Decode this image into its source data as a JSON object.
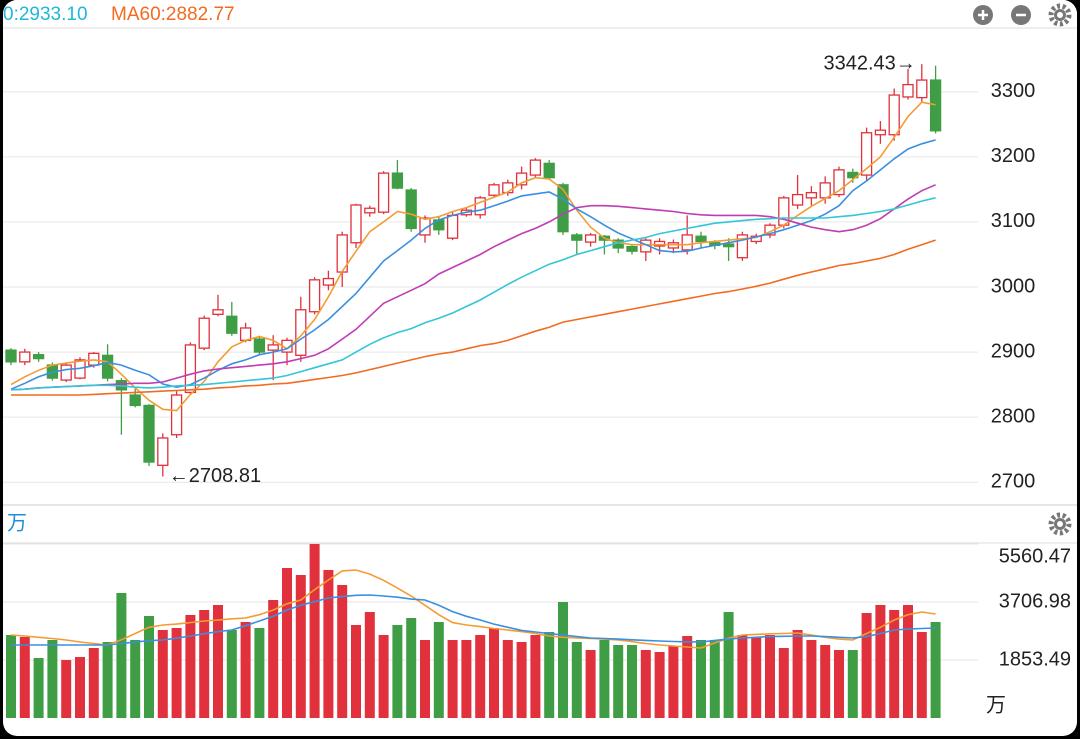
{
  "header": [
    {
      "text": "0:2933.10",
      "color": "#1fb8d8"
    },
    {
      "text": "MA60:2882.77",
      "color": "#f26b21"
    }
  ],
  "chart_data": [
    {
      "type": "candlestick",
      "up_color": "#e0313c",
      "down_color": "#3f9e45",
      "open": [
        2903,
        2885,
        2896,
        2880,
        2857,
        2860,
        2880,
        2895,
        2856,
        2834,
        2818,
        2726,
        2773,
        2838,
        2906,
        2958,
        2955,
        2918,
        2920,
        2903,
        2900,
        2895,
        2962,
        3003,
        3023,
        3068,
        3114,
        3115,
        3175,
        3149,
        3080,
        3103,
        3075,
        3111,
        3111,
        3141,
        3145,
        3157,
        3172,
        3190,
        3157,
        3080,
        3069,
        3078,
        3072,
        3062,
        3054,
        3063,
        3060,
        3057,
        3078,
        3068,
        3066,
        3045,
        3070,
        3080,
        3095,
        3126,
        3137,
        3137,
        3142,
        3176,
        3172,
        3234,
        3234,
        3292,
        3291,
        3318
      ],
      "high": [
        2906,
        2905,
        2900,
        2884,
        2884,
        2892,
        2900,
        2912,
        2860,
        2845,
        2820,
        2775,
        2840,
        2915,
        2956,
        2988,
        2977,
        2945,
        2925,
        2926,
        2922,
        2985,
        3015,
        3025,
        3085,
        3128,
        3125,
        3178,
        3195,
        3152,
        3110,
        3108,
        3115,
        3122,
        3140,
        3160,
        3165,
        3185,
        3198,
        3195,
        3160,
        3083,
        3083,
        3080,
        3075,
        3066,
        3075,
        3075,
        3073,
        3110,
        3085,
        3072,
        3075,
        3085,
        3082,
        3098,
        3140,
        3172,
        3155,
        3170,
        3185,
        3182,
        3245,
        3255,
        3305,
        3335,
        3342.43,
        3340
      ],
      "low": [
        2880,
        2880,
        2885,
        2856,
        2854,
        2858,
        2876,
        2855,
        2773,
        2815,
        2725,
        2708.81,
        2768,
        2835,
        2903,
        2955,
        2925,
        2915,
        2895,
        2857,
        2880,
        2885,
        2958,
        2995,
        3000,
        3060,
        3108,
        3112,
        3150,
        3085,
        3068,
        3080,
        3072,
        3108,
        3105,
        3138,
        3140,
        3150,
        3168,
        3165,
        3080,
        3050,
        3062,
        3050,
        3052,
        3050,
        3040,
        3050,
        3052,
        3050,
        3060,
        3058,
        3040,
        3040,
        3066,
        3075,
        3090,
        3120,
        3125,
        3128,
        3138,
        3160,
        3162,
        3220,
        3225,
        3288,
        3285,
        3236
      ],
      "close": [
        2885,
        2900,
        2890,
        2860,
        2880,
        2888,
        2898,
        2860,
        2842,
        2818,
        2731,
        2768,
        2834,
        2911,
        2952,
        2965,
        2929,
        2937,
        2900,
        2911,
        2918,
        2965,
        3011,
        3013,
        3080,
        3126,
        3121,
        3175,
        3152,
        3090,
        3106,
        3088,
        3110,
        3118,
        3137,
        3157,
        3160,
        3175,
        3195,
        3168,
        3085,
        3072,
        3080,
        3072,
        3060,
        3055,
        3072,
        3070,
        3068,
        3080,
        3070,
        3064,
        3062,
        3080,
        3078,
        3095,
        3137,
        3142,
        3145,
        3160,
        3180,
        3168,
        3237,
        3241,
        3295,
        3311,
        3318,
        3240
      ],
      "lines": [
        {
          "color": "#f39c33",
          "values": [
            2850,
            2862,
            2872,
            2880,
            2883,
            2886,
            2888,
            2885,
            2866,
            2845,
            2826,
            2812,
            2810,
            2835,
            2855,
            2885,
            2908,
            2918,
            2924,
            2918,
            2905,
            2925,
            2950,
            2985,
            3024,
            3055,
            3085,
            3100,
            3116,
            3112,
            3104,
            3108,
            3116,
            3122,
            3130,
            3138,
            3146,
            3160,
            3168,
            3166,
            3150,
            3118,
            3092,
            3075,
            3068,
            3065,
            3065,
            3065,
            3065,
            3065,
            3068,
            3070,
            3072,
            3074,
            3076,
            3085,
            3095,
            3110,
            3124,
            3136,
            3148,
            3165,
            3182,
            3200,
            3230,
            3262,
            3284,
            3280
          ]
        },
        {
          "color": "#3b8fe0",
          "values": [
            2843,
            2852,
            2862,
            2869,
            2873,
            2875,
            2879,
            2884,
            2880,
            2872,
            2865,
            2851,
            2846,
            2850,
            2860,
            2872,
            2882,
            2888,
            2896,
            2900,
            2905,
            2920,
            2934,
            2950,
            2970,
            2990,
            3015,
            3040,
            3056,
            3072,
            3090,
            3103,
            3110,
            3115,
            3118,
            3125,
            3132,
            3140,
            3143,
            3146,
            3135,
            3120,
            3108,
            3095,
            3083,
            3074,
            3065,
            3056,
            3054,
            3055,
            3060,
            3064,
            3068,
            3072,
            3077,
            3082,
            3088,
            3095,
            3102,
            3112,
            3125,
            3148,
            3163,
            3180,
            3197,
            3212,
            3220,
            3226
          ]
        },
        {
          "color": "#c03cb4",
          "values": [
            2842,
            2843,
            2845,
            2846,
            2847,
            2848,
            2849,
            2850,
            2851,
            2852,
            2852,
            2854,
            2860,
            2866,
            2871,
            2874,
            2876,
            2878,
            2880,
            2882,
            2885,
            2890,
            2895,
            2905,
            2920,
            2935,
            2955,
            2975,
            2985,
            2995,
            3005,
            3020,
            3030,
            3040,
            3050,
            3062,
            3072,
            3082,
            3090,
            3100,
            3112,
            3122,
            3125,
            3125,
            3124,
            3122,
            3120,
            3118,
            3116,
            3113,
            3111,
            3110,
            3110,
            3110,
            3110,
            3108,
            3104,
            3098,
            3092,
            3088,
            3085,
            3088,
            3095,
            3105,
            3120,
            3135,
            3148,
            3157
          ]
        },
        {
          "color": "#33c5d8",
          "values": [
            2842,
            2843,
            2845,
            2846,
            2847,
            2848,
            2849,
            2849,
            2848,
            2846,
            2845,
            2846,
            2848,
            2849,
            2850,
            2852,
            2854,
            2856,
            2858,
            2860,
            2864,
            2870,
            2876,
            2882,
            2888,
            2900,
            2912,
            2922,
            2930,
            2936,
            2945,
            2952,
            2960,
            2970,
            2980,
            2992,
            3004,
            3015,
            3025,
            3035,
            3042,
            3050,
            3056,
            3062,
            3068,
            3072,
            3076,
            3082,
            3086,
            3090,
            3094,
            3098,
            3100,
            3102,
            3104,
            3105,
            3106,
            3106,
            3106,
            3106,
            3108,
            3110,
            3113,
            3116,
            3120,
            3126,
            3132,
            3137
          ]
        },
        {
          "color": "#f26b21",
          "values": [
            2834,
            2834,
            2834,
            2834,
            2834,
            2834,
            2835,
            2836,
            2837,
            2838,
            2839,
            2840,
            2841,
            2842,
            2843,
            2845,
            2846,
            2848,
            2849,
            2851,
            2852,
            2855,
            2858,
            2861,
            2864,
            2868,
            2873,
            2878,
            2883,
            2888,
            2893,
            2897,
            2900,
            2905,
            2910,
            2913,
            2918,
            2925,
            2932,
            2938,
            2946,
            2950,
            2954,
            2958,
            2962,
            2966,
            2970,
            2974,
            2978,
            2982,
            2986,
            2990,
            2993,
            2997,
            3001,
            3006,
            3012,
            3018,
            3023,
            3028,
            3033,
            3036,
            3040,
            3044,
            3050,
            3058,
            3065,
            3072
          ]
        }
      ],
      "annotations": [
        {
          "x": 11,
          "value": 2708.81,
          "label": "←2708.81"
        },
        {
          "x": 66,
          "value": 3342.43,
          "label": "3342.43→"
        }
      ],
      "ylim": [
        2665,
        3398
      ],
      "yticks": [
        2700,
        2800,
        2900,
        3000,
        3100,
        3200,
        3300
      ],
      "grid": true
    },
    {
      "type": "bar",
      "unit_label": "万",
      "values": [
        2652,
        2589,
        1917,
        2493,
        1853,
        1949,
        2237,
        2429,
        3995,
        2493,
        3260,
        2812,
        2876,
        3292,
        3451,
        3611,
        2812,
        3068,
        2876,
        3771,
        4794,
        4570,
        5560,
        4730,
        4250,
        2972,
        3387,
        2652,
        2972,
        3196,
        2493,
        3068,
        2493,
        2493,
        2652,
        2876,
        2493,
        2429,
        2652,
        2748,
        3707,
        2429,
        2173,
        2493,
        2333,
        2333,
        2173,
        2109,
        2301,
        2620,
        2493,
        2493,
        3387,
        2652,
        2589,
        2652,
        2237,
        2812,
        2493,
        2333,
        2173,
        2173,
        3355,
        3611,
        3451,
        3611,
        2748,
        3068
      ],
      "lines": [
        {
          "color": "#f39c33",
          "values": [
            2652,
            2620,
            2580,
            2540,
            2493,
            2430,
            2380,
            2333,
            2500,
            2700,
            2900,
            2972,
            3000,
            3050,
            3100,
            3130,
            3170,
            3196,
            3300,
            3450,
            3650,
            3771,
            4100,
            4410,
            4700,
            4730,
            4600,
            4400,
            4150,
            3900,
            3600,
            3300,
            3050,
            2972,
            2920,
            2860,
            2812,
            2760,
            2700,
            2620,
            2580,
            2557,
            2540,
            2520,
            2493,
            2440,
            2380,
            2333,
            2300,
            2270,
            2237,
            2400,
            2550,
            2652,
            2670,
            2690,
            2700,
            2716,
            2650,
            2580,
            2520,
            2493,
            2700,
            2900,
            3132,
            3300,
            3387,
            3323
          ]
        },
        {
          "color": "#3b8fe0",
          "values": [
            2333,
            2333,
            2333,
            2333,
            2333,
            2333,
            2333,
            2333,
            2380,
            2430,
            2470,
            2493,
            2550,
            2620,
            2690,
            2760,
            2812,
            2950,
            3100,
            3250,
            3451,
            3600,
            3720,
            3835,
            3880,
            3920,
            3931,
            3900,
            3860,
            3800,
            3771,
            3600,
            3400,
            3250,
            3132,
            3000,
            2900,
            2800,
            2748,
            2700,
            2650,
            2600,
            2557,
            2540,
            2520,
            2500,
            2480,
            2460,
            2445,
            2435,
            2429,
            2480,
            2520,
            2557,
            2580,
            2600,
            2610,
            2620,
            2620,
            2600,
            2580,
            2557,
            2600,
            2700,
            2812,
            2840,
            2860,
            2876
          ]
        }
      ],
      "ylim": [
        0,
        5560.47
      ],
      "yticks": [
        1853.49,
        3706.98,
        5560.47
      ],
      "grid": true
    }
  ]
}
